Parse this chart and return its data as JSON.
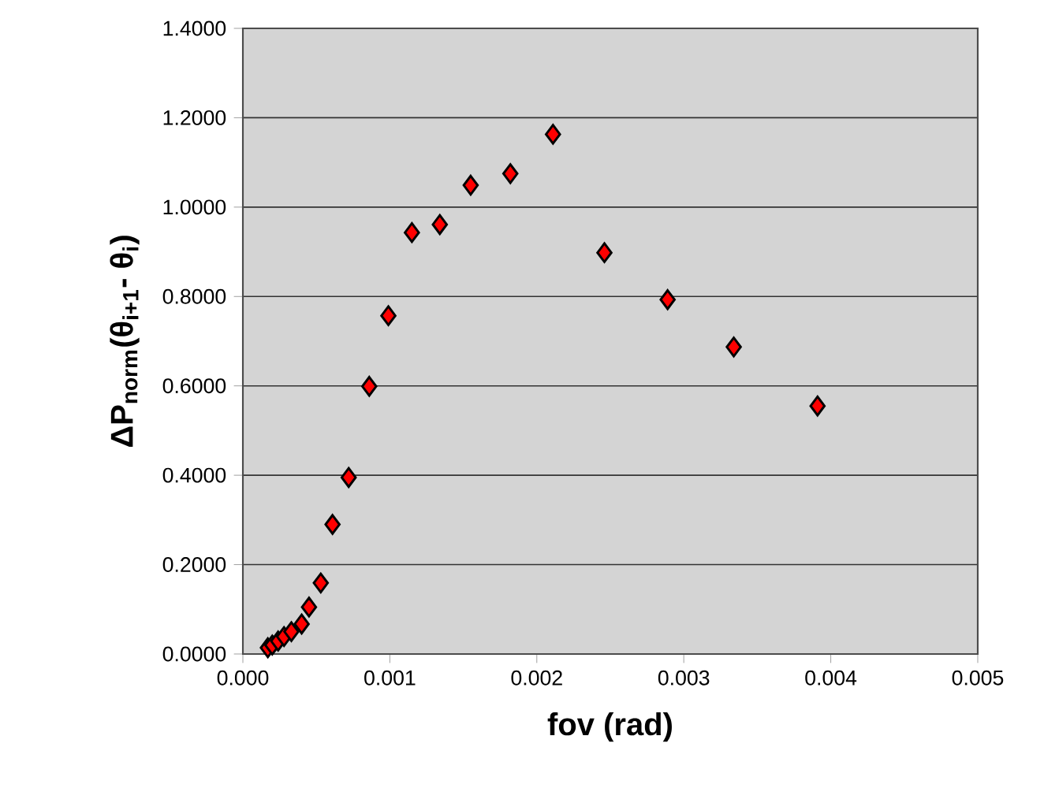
{
  "chart_data": {
    "type": "scatter",
    "xlabel": "fov (rad)",
    "ylabel": "**ΔP$_{norm}$(θ$_{i+1}$- θ$_{i}$)**",
    "x": [
      0.00017,
      0.0002,
      0.00024,
      0.00028,
      0.00033,
      0.0004,
      0.00045,
      0.00053,
      0.00061,
      0.00072,
      0.00086,
      0.00099,
      0.00115,
      0.00134,
      0.00155,
      0.00182,
      0.00211,
      0.00246,
      0.00289,
      0.00334,
      0.00391
    ],
    "values": [
      0.014,
      0.02,
      0.029,
      0.039,
      0.05,
      0.067,
      0.105,
      0.159,
      0.29,
      0.395,
      0.599,
      0.757,
      0.943,
      0.961,
      1.049,
      1.075,
      1.163,
      0.898,
      0.793,
      0.687,
      0.555
    ],
    "color": "#ff0000",
    "marker": "diamond",
    "grid": "y",
    "xlim": [
      0,
      0.005
    ],
    "ylim": [
      0,
      1.4
    ],
    "xticks": [
      {
        "value": 0,
        "label": "0.000"
      },
      0.001,
      0.002,
      0.003,
      0.004,
      0.005
    ],
    "yticks": [
      {
        "value": 0,
        "label": "0.0000"
      },
      {
        "value": 0.2,
        "label": "0.2000"
      },
      {
        "value": 0.4,
        "label": "0.4000"
      },
      {
        "value": 0.6,
        "label": "0.6000"
      },
      {
        "value": 0.8,
        "label": "0.8000"
      },
      {
        "value": 1.0,
        "label": "1.0000"
      },
      {
        "value": 1.2,
        "label": "1.2000"
      },
      {
        "value": 1.4,
        "label": "1.4000"
      }
    ]
  }
}
